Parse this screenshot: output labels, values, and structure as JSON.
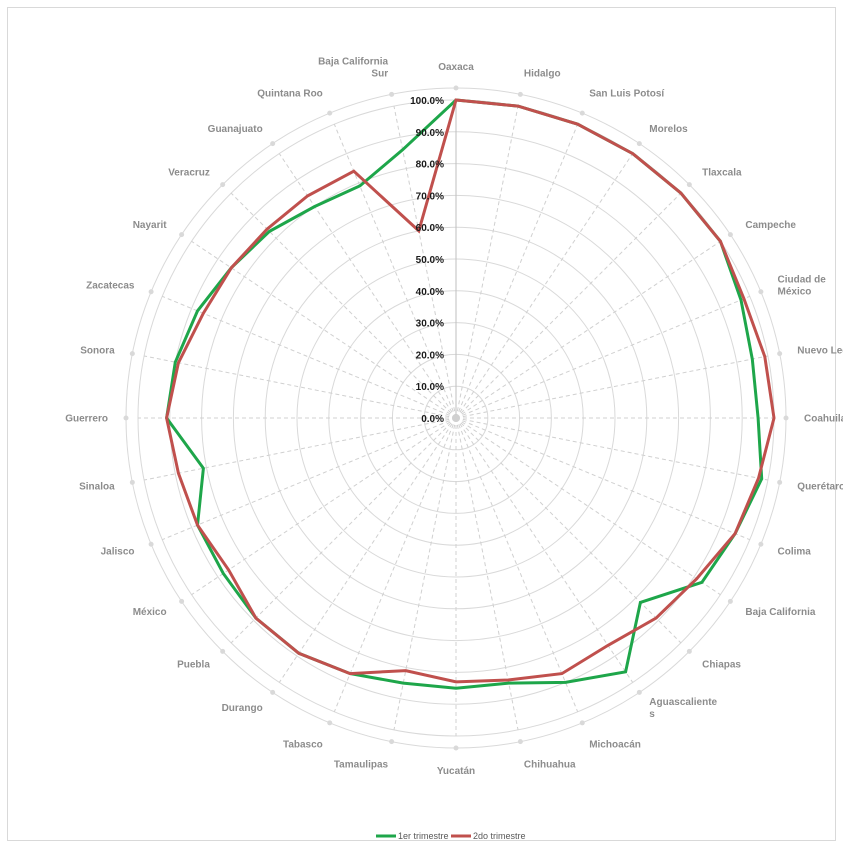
{
  "chart_data": {
    "type": "radar",
    "title": "",
    "categories": [
      "Oaxaca",
      "Hidalgo",
      "San Luis Potosí",
      "Morelos",
      "Tlaxcala",
      "Campeche",
      "Ciudad de México",
      "Nuevo León",
      "Coahuila",
      "Querétaro",
      "Colima",
      "Baja California",
      "Chiapas",
      "Aguascalientes",
      "Michoacán",
      "Chihuahua",
      "Yucatán",
      "Tamaulipas",
      "Tabasco",
      "Durango",
      "Puebla",
      "México",
      "Jalisco",
      "Sinaloa",
      "Guerrero",
      "Sonora",
      "Zacatecas",
      "Nayarit",
      "Veracruz",
      "Guanajuato",
      "Quintana Roo",
      "Baja California Sur"
    ],
    "category_label_lines": [
      [
        "Oaxaca"
      ],
      [
        "Hidalgo"
      ],
      [
        "San Luis Potosí"
      ],
      [
        "Morelos"
      ],
      [
        "Tlaxcala"
      ],
      [
        "Campeche"
      ],
      [
        "Ciudad de",
        "México"
      ],
      [
        "Nuevo León"
      ],
      [
        "Coahuila"
      ],
      [
        "Querétaro"
      ],
      [
        "Colima"
      ],
      [
        "Baja California"
      ],
      [
        "Chiapas"
      ],
      [
        "Aguascaliente",
        "s"
      ],
      [
        "Michoacán"
      ],
      [
        "Chihuahua"
      ],
      [
        "Yucatán"
      ],
      [
        "Tamaulipas"
      ],
      [
        "Tabasco"
      ],
      [
        "Durango"
      ],
      [
        "Puebla"
      ],
      [
        "México"
      ],
      [
        "Jalisco"
      ],
      [
        "Sinaloa"
      ],
      [
        "Guerrero"
      ],
      [
        "Sonora"
      ],
      [
        "Zacatecas"
      ],
      [
        "Nayarit"
      ],
      [
        "Veracruz"
      ],
      [
        "Guanajuato"
      ],
      [
        "Quintana Roo"
      ],
      [
        "Baja California",
        "Sur"
      ]
    ],
    "rlim": [
      0,
      100
    ],
    "tick_values": [
      0,
      10,
      20,
      30,
      40,
      50,
      60,
      70,
      80,
      90,
      100
    ],
    "tick_labels": [
      "0.0%",
      "10.0%",
      "20.0%",
      "30.0%",
      "40.0%",
      "50.0%",
      "60.0%",
      "70.0%",
      "80.0%",
      "90.0%",
      "100.0%"
    ],
    "grid": true,
    "legend_position": "bottom",
    "series": [
      {
        "name": "1er trimestre",
        "color": "#1ea64a",
        "values": [
          100,
          100,
          100,
          100,
          100,
          100,
          97,
          95,
          95,
          98,
          95,
          93,
          82,
          96,
          90,
          85,
          85,
          85,
          87,
          89,
          89,
          88,
          88,
          81,
          91,
          90,
          88,
          85,
          83,
          80,
          79,
          86
        ]
      },
      {
        "name": "2do trimestre",
        "color": "#c0504d",
        "values": [
          100,
          100,
          100,
          100,
          100,
          100,
          98,
          99,
          100,
          97,
          95,
          91,
          89,
          86,
          87,
          84,
          83,
          81,
          87,
          89,
          89,
          86,
          88,
          89,
          91,
          89,
          86,
          85,
          84,
          84,
          84,
          60
        ]
      }
    ]
  }
}
